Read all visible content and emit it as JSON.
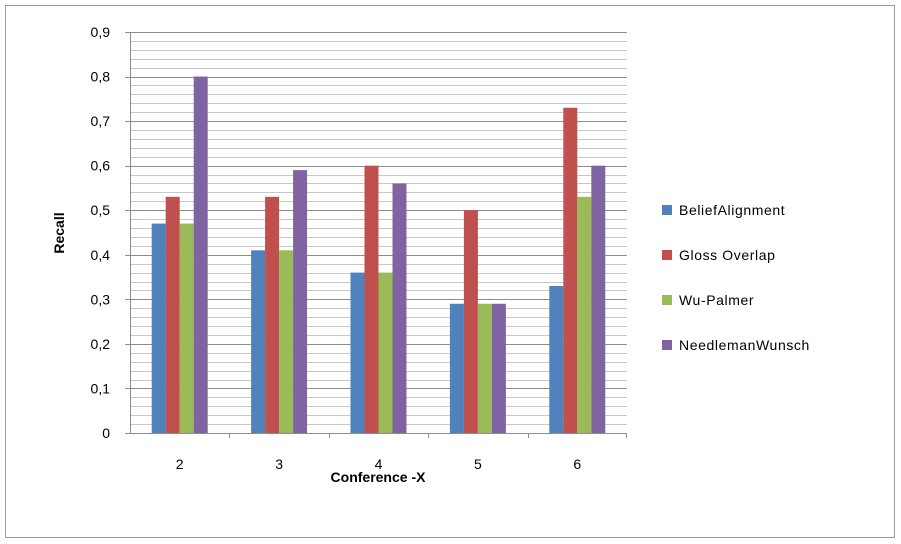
{
  "chart_data": {
    "type": "bar",
    "categories": [
      "2",
      "3",
      "4",
      "5",
      "6"
    ],
    "series": [
      {
        "name": "BeliefAlignment",
        "color": "#4f81bd",
        "values": [
          0.47,
          0.41,
          0.36,
          0.29,
          0.33
        ]
      },
      {
        "name": "Gloss Overlap",
        "color": "#c0504d",
        "values": [
          0.53,
          0.53,
          0.6,
          0.5,
          0.73
        ]
      },
      {
        "name": "Wu-Palmer",
        "color": "#9bbb59",
        "values": [
          0.47,
          0.41,
          0.36,
          0.29,
          0.53
        ]
      },
      {
        "name": "NeedlemanWunsch",
        "color": "#8064a2",
        "values": [
          0.8,
          0.59,
          0.56,
          0.29,
          0.6
        ]
      }
    ],
    "xlabel": "Conference -X",
    "ylabel": "Recall",
    "ylim": [
      0,
      0.9
    ],
    "yticks": [
      "0",
      "0,1",
      "0,2",
      "0,3",
      "0,4",
      "0,5",
      "0,6",
      "0,7",
      "0,8",
      "0,9"
    ],
    "grid": true,
    "legend_position": "right"
  }
}
